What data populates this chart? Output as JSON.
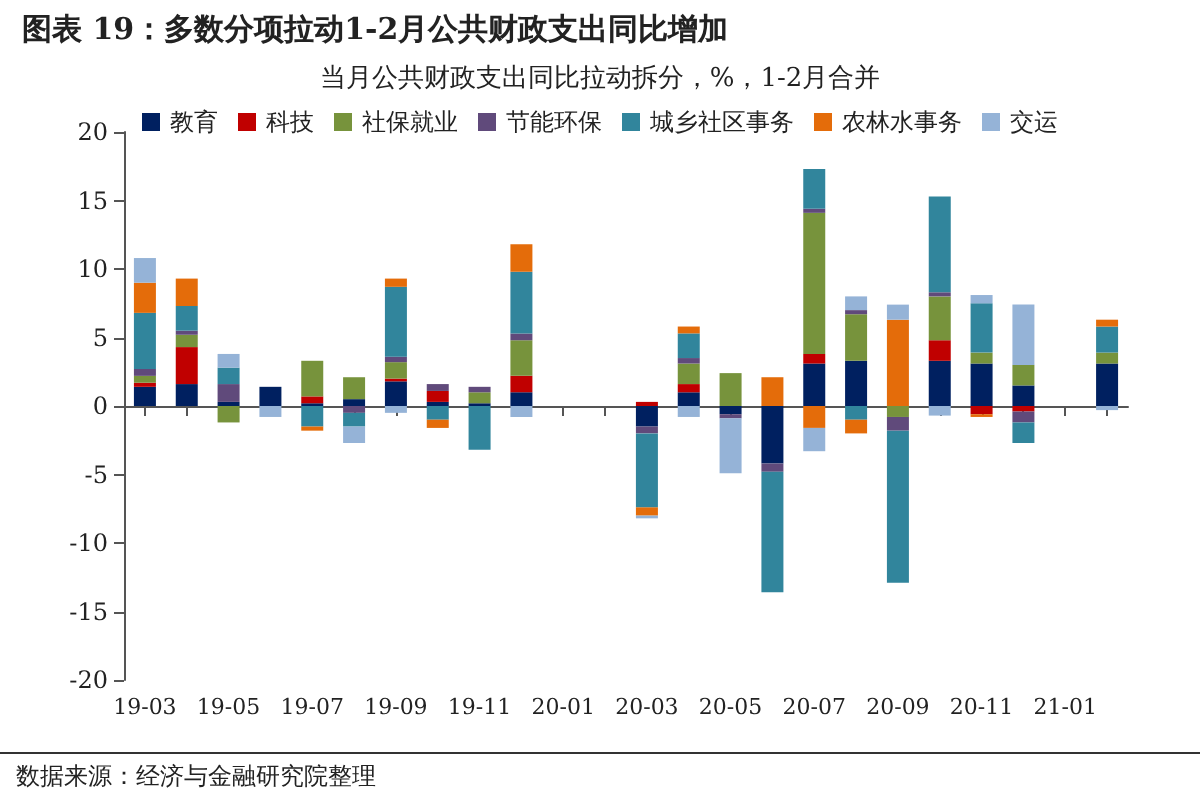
{
  "chart_data": {
    "type": "bar",
    "stacked": true,
    "title": "图表 19：多数分项拉动1-2月公共财政支出同比增加",
    "subtitle": "当月公共财政支出同比拉动拆分，%，1-2月合并",
    "categories": [
      "19-03",
      null,
      "19-05",
      null,
      "19-07",
      null,
      "19-09",
      null,
      "19-11",
      null,
      "20-01",
      null,
      "20-03",
      null,
      "20-05",
      null,
      "20-07",
      null,
      "20-09",
      null,
      "20-11",
      null,
      "21-01",
      null
    ],
    "series": [
      {
        "name": "教育",
        "color": "#002060",
        "values": [
          1.4,
          1.6,
          0.3,
          1.4,
          0.2,
          0.5,
          1.8,
          0.3,
          0.2,
          1.0,
          null,
          null,
          -1.5,
          1.0,
          -0.6,
          -4.2,
          3.1,
          3.3,
          0,
          3.3,
          3.1,
          1.5,
          null,
          3.1
        ]
      },
      {
        "name": "科技",
        "color": "#c00000",
        "values": [
          0.3,
          2.7,
          0,
          0,
          0.5,
          0,
          0.2,
          0.8,
          0,
          1.2,
          null,
          null,
          0.3,
          0.6,
          0,
          0,
          0.7,
          0,
          0,
          1.5,
          -0.6,
          -0.4,
          null,
          0
        ]
      },
      {
        "name": "社保就业",
        "color": "#77933c",
        "values": [
          0.5,
          0.9,
          -1.2,
          0,
          2.6,
          1.6,
          1.2,
          0,
          0.8,
          2.6,
          null,
          null,
          0,
          1.5,
          2.4,
          0,
          10.3,
          3.4,
          -0.8,
          3.2,
          0.8,
          1.5,
          null,
          0.8
        ]
      },
      {
        "name": "节能环保",
        "color": "#604a7b",
        "values": [
          0.5,
          0.3,
          1.3,
          0,
          0,
          -0.5,
          0.4,
          0.5,
          0.4,
          0.5,
          null,
          null,
          -0.5,
          0.4,
          -0.3,
          -0.6,
          0.3,
          0.3,
          -1.0,
          0.3,
          0,
          -0.8,
          null,
          0
        ]
      },
      {
        "name": "城乡社区事务",
        "color": "#31859c",
        "values": [
          4.1,
          1.8,
          1.2,
          0,
          -1.5,
          -1.0,
          5.1,
          -1.0,
          -3.2,
          4.5,
          null,
          null,
          -5.4,
          1.8,
          0,
          -8.8,
          2.9,
          -1.0,
          -11.1,
          7.0,
          3.6,
          -1.5,
          null,
          1.9
        ]
      },
      {
        "name": "农林水事务",
        "color": "#e46c0a",
        "values": [
          2.2,
          2.0,
          0,
          0,
          -0.3,
          0,
          0.6,
          -0.6,
          0,
          2.0,
          null,
          null,
          -0.6,
          0.5,
          0,
          2.1,
          -1.6,
          -1.0,
          6.3,
          0,
          -0.2,
          0,
          null,
          0.5
        ]
      },
      {
        "name": "交运",
        "color": "#95b3d7",
        "values": [
          1.8,
          0,
          1.0,
          -0.8,
          0,
          -1.2,
          -0.5,
          0,
          0,
          -0.8,
          null,
          null,
          -0.2,
          -0.8,
          -4.0,
          0,
          -1.7,
          1.0,
          1.1,
          -0.7,
          0.6,
          4.4,
          null,
          -0.3
        ]
      }
    ],
    "ylim": [
      -20,
      20
    ],
    "yticks": [
      -20,
      -15,
      -10,
      -5,
      0,
      5,
      10,
      15,
      20
    ],
    "legend": "top",
    "annotations": [
      "数据来源：经济与金融研究院整理"
    ]
  }
}
